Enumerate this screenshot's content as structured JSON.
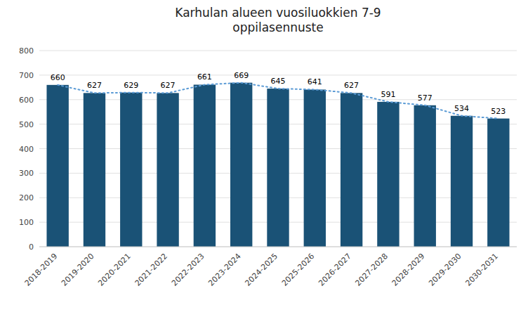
{
  "chart_data": {
    "type": "bar",
    "title": "Karhulan alueen vuosiluokkien 7-9\noppilasennuste",
    "categories": [
      "2018-2019",
      "2019-2020",
      "2020-2021",
      "2021-2022",
      "2022-2023",
      "2023-2024",
      "2024-2025",
      "2025-2026",
      "2026-2027",
      "2027-2028",
      "2028-2029",
      "2029-2030",
      "2030-2031"
    ],
    "series": [
      {
        "type": "bar",
        "color": "#1a5276",
        "values": [
          660,
          627,
          629,
          627,
          661,
          669,
          645,
          641,
          627,
          591,
          577,
          534,
          523
        ]
      },
      {
        "type": "line",
        "color": "#5b9bd5",
        "line_style": "dotted",
        "values": [
          660,
          627,
          629,
          627,
          661,
          669,
          645,
          641,
          627,
          591,
          577,
          534,
          523
        ]
      }
    ],
    "ylim": [
      0,
      800
    ],
    "yticks": [
      0,
      100,
      200,
      300,
      400,
      500,
      600,
      700,
      800
    ],
    "grid": true,
    "data_labels": true
  }
}
